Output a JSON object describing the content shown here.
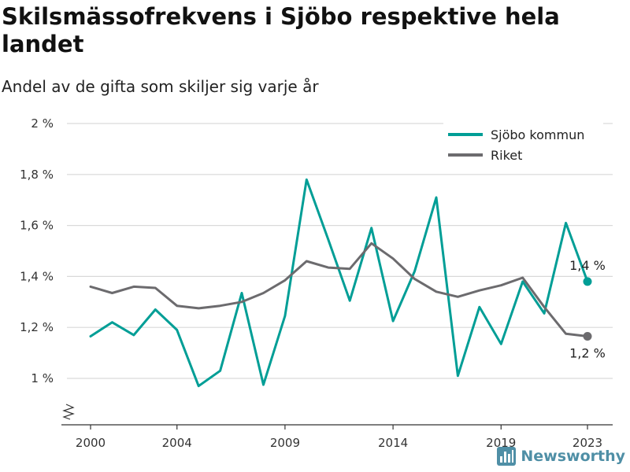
{
  "title": "Skilsmässofrekvens i Sjöbo respektive hela landet",
  "subtitle": "Andel av de gifta som skiljer sig varje år",
  "brand": {
    "name": "Newsworthy",
    "icon": "bar-chart-logo-icon",
    "color": "#4f8fa6"
  },
  "chart_data": {
    "type": "line",
    "title": "Skilsmässofrekvens i Sjöbo respektive hela landet",
    "subtitle": "Andel av de gifta som skiljer sig varje år",
    "xlabel": "",
    "ylabel": "",
    "x": [
      2000,
      2001,
      2002,
      2003,
      2004,
      2005,
      2006,
      2007,
      2008,
      2009,
      2010,
      2011,
      2012,
      2013,
      2014,
      2015,
      2016,
      2017,
      2018,
      2019,
      2020,
      2021,
      2022,
      2023
    ],
    "x_ticks": [
      2000,
      2004,
      2009,
      2014,
      2019,
      2023
    ],
    "x_tick_labels": [
      "2000",
      "2004",
      "2009",
      "2014",
      "2019",
      "2023"
    ],
    "ylim": [
      0.9,
      2.0
    ],
    "y_ticks": [
      1.0,
      1.2,
      1.4,
      1.6,
      1.8,
      2.0
    ],
    "y_tick_labels": [
      "1 %",
      "1,2 %",
      "1,4 %",
      "1,6 %",
      "1,8 %",
      "2 %"
    ],
    "y_axis_break": true,
    "grid": true,
    "legend_position": "top-right",
    "series": [
      {
        "name": "Sjöbo kommun",
        "color": "#009e96",
        "values": [
          1.165,
          1.22,
          1.17,
          1.27,
          1.19,
          0.97,
          1.03,
          1.335,
          0.975,
          1.245,
          1.78,
          1.545,
          1.305,
          1.59,
          1.225,
          1.42,
          1.71,
          1.01,
          1.28,
          1.135,
          1.38,
          1.255,
          1.61,
          1.38
        ],
        "end_label": "1,4 %"
      },
      {
        "name": "Riket",
        "color": "#6c6b6e",
        "values": [
          1.36,
          1.335,
          1.36,
          1.355,
          1.285,
          1.275,
          1.285,
          1.3,
          1.335,
          1.385,
          1.46,
          1.435,
          1.43,
          1.53,
          1.47,
          1.39,
          1.34,
          1.32,
          1.345,
          1.365,
          1.395,
          1.28,
          1.175,
          1.165
        ],
        "end_label": "1,2 %"
      }
    ]
  }
}
